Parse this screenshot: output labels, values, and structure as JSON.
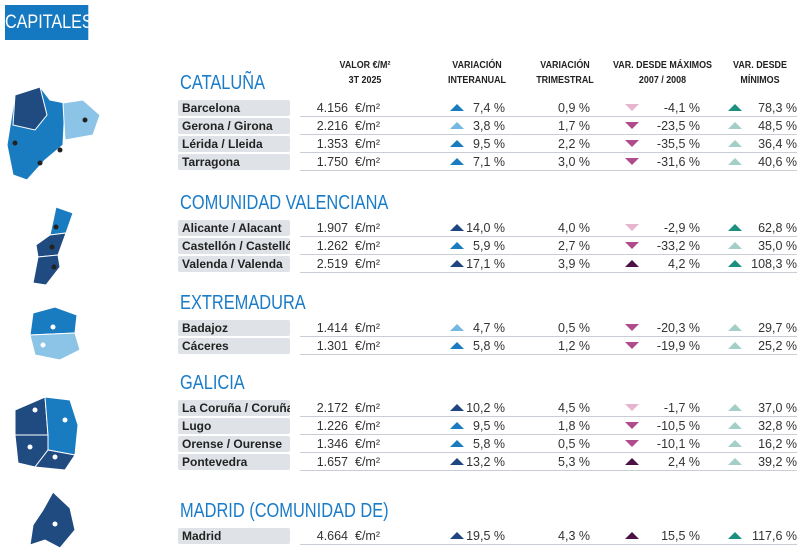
{
  "tag": "CAPITALES",
  "headers": {
    "valor": [
      "VALOR €/M²",
      "3T 2025"
    ],
    "interanual": [
      "VARIACIÓN",
      "INTERANUAL"
    ],
    "trimestral": [
      "VARIACIÓN",
      "TRIMESTRAL"
    ],
    "maximos": [
      "VAR. DESDE MÁXIMOS",
      "2007 / 2008"
    ],
    "minimos": [
      "VAR. DESDE",
      "MÍNIMOS"
    ]
  },
  "arrow_colors": {
    "up-dark-blue": "#1f4680",
    "up-blue": "#1a7cc0",
    "up-light-blue": "#74b8e2",
    "down-light-pink": "#e6b6d0",
    "down-magenta": "#b04b8c",
    "up-dark-purple": "#4b1245",
    "up-teal": "#1b8f80",
    "up-light-teal": "#a3cfc8"
  },
  "map_colors": {
    "dark": "#1f4b80",
    "mid": "#1a7cc0",
    "light": "#8cc4e8"
  },
  "sections": [
    {
      "title": "CATALUÑA",
      "rows": [
        {
          "name": "Barcelona",
          "value": "4.156",
          "unit": "€/m²",
          "interanual": "7,4 %",
          "ia_arrow": "up-blue",
          "trimestral": "0,9 %",
          "maximos": "-4,1 %",
          "mx_arrow": "down-light-pink",
          "minimos": "78,3 %",
          "mn_arrow": "up-teal"
        },
        {
          "name": "Gerona / Girona",
          "value": "2.216",
          "unit": "€/m²",
          "interanual": "3,8 %",
          "ia_arrow": "up-light-blue",
          "trimestral": "1,7 %",
          "maximos": "-23,5 %",
          "mx_arrow": "down-magenta",
          "minimos": "48,5 %",
          "mn_arrow": "up-light-teal"
        },
        {
          "name": "Lérida / Lleida",
          "value": "1.353",
          "unit": "€/m²",
          "interanual": "9,5 %",
          "ia_arrow": "up-blue",
          "trimestral": "2,2 %",
          "maximos": "-35,5 %",
          "mx_arrow": "down-magenta",
          "minimos": "36,4 %",
          "mn_arrow": "up-light-teal"
        },
        {
          "name": "Tarragona",
          "value": "1.750",
          "unit": "€/m²",
          "interanual": "7,1 %",
          "ia_arrow": "up-blue",
          "trimestral": "3,0 %",
          "maximos": "-31,6 %",
          "mx_arrow": "down-magenta",
          "minimos": "40,6 %",
          "mn_arrow": "up-light-teal"
        }
      ]
    },
    {
      "title": "COMUNIDAD VALENCIANA",
      "rows": [
        {
          "name": "Alicante / Alacant",
          "value": "1.907",
          "unit": "€/m²",
          "interanual": "14,0 %",
          "ia_arrow": "up-dark-blue",
          "trimestral": "4,0 %",
          "maximos": "-2,9 %",
          "mx_arrow": "down-light-pink",
          "minimos": "62,8 %",
          "mn_arrow": "up-teal"
        },
        {
          "name": "Castellón / Castelló",
          "value": "1.262",
          "unit": "€/m²",
          "interanual": "5,9 %",
          "ia_arrow": "up-blue",
          "trimestral": "2,7 %",
          "maximos": "-33,2 %",
          "mx_arrow": "down-magenta",
          "minimos": "35,0 %",
          "mn_arrow": "up-light-teal"
        },
        {
          "name": "Valenda / Valenda",
          "value": "2.519",
          "unit": "€/m²",
          "interanual": "17,1 %",
          "ia_arrow": "up-dark-blue",
          "trimestral": "3,9 %",
          "maximos": "4,2 %",
          "mx_arrow": "up-dark-purple",
          "minimos": "108,3 %",
          "mn_arrow": "up-teal"
        }
      ]
    },
    {
      "title": "EXTREMADURA",
      "rows": [
        {
          "name": "Badajoz",
          "value": "1.414",
          "unit": "€/m²",
          "interanual": "4,7 %",
          "ia_arrow": "up-light-blue",
          "trimestral": "0,5 %",
          "maximos": "-20,3 %",
          "mx_arrow": "down-magenta",
          "minimos": "29,7 %",
          "mn_arrow": "up-light-teal"
        },
        {
          "name": "Cáceres",
          "value": "1.301",
          "unit": "€/m²",
          "interanual": "5,8 %",
          "ia_arrow": "up-blue",
          "trimestral": "1,2 %",
          "maximos": "-19,9 %",
          "mx_arrow": "down-magenta",
          "minimos": "25,2 %",
          "mn_arrow": "up-light-teal"
        }
      ]
    },
    {
      "title": "GALICIA",
      "rows": [
        {
          "name": "La Coruña / Coruña (A)",
          "value": "2.172",
          "unit": "€/m²",
          "interanual": "10,2 %",
          "ia_arrow": "up-dark-blue",
          "trimestral": "4,5 %",
          "maximos": "-1,7 %",
          "mx_arrow": "down-light-pink",
          "minimos": "37,0 %",
          "mn_arrow": "up-light-teal"
        },
        {
          "name": "Lugo",
          "value": "1.226",
          "unit": "€/m²",
          "interanual": "9,5 %",
          "ia_arrow": "up-blue",
          "trimestral": "1,8 %",
          "maximos": "-10,5 %",
          "mx_arrow": "down-magenta",
          "minimos": "32,8 %",
          "mn_arrow": "up-light-teal"
        },
        {
          "name": "Orense / Ourense",
          "value": "1.346",
          "unit": "€/m²",
          "interanual": "5,8 %",
          "ia_arrow": "up-blue",
          "trimestral": "0,5 %",
          "maximos": "-10,1 %",
          "mx_arrow": "down-magenta",
          "minimos": "16,2 %",
          "mn_arrow": "up-light-teal"
        },
        {
          "name": "Pontevedra",
          "value": "1.657",
          "unit": "€/m²",
          "interanual": "13,2 %",
          "ia_arrow": "up-dark-blue",
          "trimestral": "5,3 %",
          "maximos": "2,4 %",
          "mx_arrow": "up-dark-purple",
          "minimos": "39,2 %",
          "mn_arrow": "up-light-teal"
        }
      ]
    },
    {
      "title": "MADRID (COMUNIDAD DE)",
      "rows": [
        {
          "name": "Madrid",
          "value": "4.664",
          "unit": "€/m²",
          "interanual": "19,5 %",
          "ia_arrow": "up-dark-blue",
          "trimestral": "4,3 %",
          "maximos": "15,5 %",
          "mx_arrow": "up-dark-purple",
          "minimos": "117,6 %",
          "mn_arrow": "up-teal"
        }
      ]
    }
  ]
}
